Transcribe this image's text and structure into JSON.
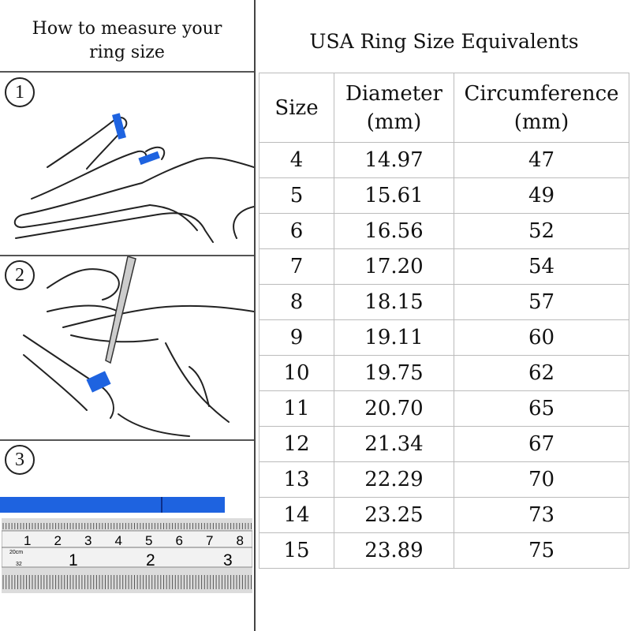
{
  "left": {
    "title_line1": "How to measure your",
    "title_line2": "ring size",
    "steps": [
      "①",
      "②",
      "③"
    ],
    "steps_text": [
      "1",
      "2",
      "3"
    ],
    "ruler": {
      "cm_label": "20cm",
      "cm_ticks": [
        "1",
        "2",
        "3",
        "4",
        "5",
        "6",
        "7",
        "8"
      ],
      "inch_label": "32",
      "inch_ticks": [
        "1",
        "2",
        "3"
      ]
    },
    "band_color": "#1e63e0"
  },
  "right": {
    "title": "USA Ring Size Equivalents",
    "headers": {
      "size": "Size",
      "diameter": "Diameter",
      "diameter_unit": "(mm)",
      "circumference": "Circumference",
      "circumference_unit": "(mm)"
    },
    "rows": [
      {
        "size": "4",
        "diameter": "14.97",
        "circumference": "47"
      },
      {
        "size": "5",
        "diameter": "15.61",
        "circumference": "49"
      },
      {
        "size": "6",
        "diameter": "16.56",
        "circumference": "52"
      },
      {
        "size": "7",
        "diameter": "17.20",
        "circumference": "54"
      },
      {
        "size": "8",
        "diameter": "18.15",
        "circumference": "57"
      },
      {
        "size": "9",
        "diameter": "19.11",
        "circumference": "60"
      },
      {
        "size": "10",
        "diameter": "19.75",
        "circumference": "62"
      },
      {
        "size": "11",
        "diameter": "20.70",
        "circumference": "65"
      },
      {
        "size": "12",
        "diameter": "21.34",
        "circumference": "67"
      },
      {
        "size": "13",
        "diameter": "22.29",
        "circumference": "70"
      },
      {
        "size": "14",
        "diameter": "23.25",
        "circumference": "73"
      },
      {
        "size": "15",
        "diameter": "23.89",
        "circumference": "75"
      }
    ]
  }
}
